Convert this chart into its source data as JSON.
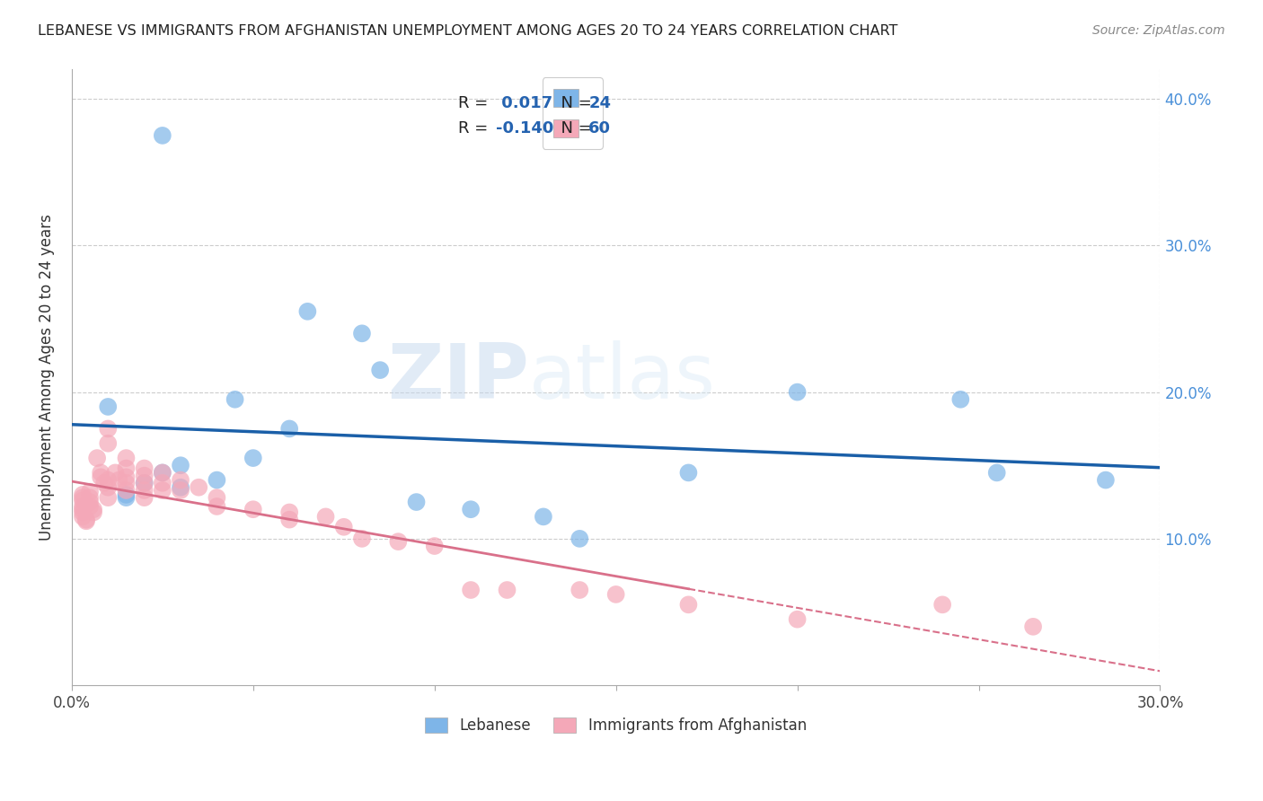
{
  "title": "LEBANESE VS IMMIGRANTS FROM AFGHANISTAN UNEMPLOYMENT AMONG AGES 20 TO 24 YEARS CORRELATION CHART",
  "source": "Source: ZipAtlas.com",
  "ylabel": "Unemployment Among Ages 20 to 24 years",
  "xlim": [
    0.0,
    0.3
  ],
  "ylim": [
    0.0,
    0.42
  ],
  "legend_R1": "0.017",
  "legend_N1": "24",
  "legend_R2": "-0.140",
  "legend_N2": "60",
  "color_lebanese": "#7eb5e8",
  "color_afghan": "#f4a8b8",
  "trend_color_lebanese": "#1a5fa8",
  "trend_color_afghan": "#d9708a",
  "watermark_zip": "ZIP",
  "watermark_atlas": "atlas",
  "lebanese_points": [
    [
      0.025,
      0.375
    ],
    [
      0.065,
      0.255
    ],
    [
      0.08,
      0.24
    ],
    [
      0.085,
      0.215
    ],
    [
      0.045,
      0.195
    ],
    [
      0.01,
      0.19
    ],
    [
      0.06,
      0.175
    ],
    [
      0.05,
      0.155
    ],
    [
      0.03,
      0.15
    ],
    [
      0.025,
      0.145
    ],
    [
      0.04,
      0.14
    ],
    [
      0.02,
      0.138
    ],
    [
      0.03,
      0.135
    ],
    [
      0.015,
      0.13
    ],
    [
      0.015,
      0.128
    ],
    [
      0.095,
      0.125
    ],
    [
      0.11,
      0.12
    ],
    [
      0.13,
      0.115
    ],
    [
      0.14,
      0.1
    ],
    [
      0.17,
      0.145
    ],
    [
      0.2,
      0.2
    ],
    [
      0.245,
      0.195
    ],
    [
      0.255,
      0.145
    ],
    [
      0.285,
      0.14
    ]
  ],
  "afghan_points": [
    [
      0.003,
      0.13
    ],
    [
      0.003,
      0.128
    ],
    [
      0.003,
      0.126
    ],
    [
      0.003,
      0.122
    ],
    [
      0.003,
      0.12
    ],
    [
      0.003,
      0.118
    ],
    [
      0.003,
      0.115
    ],
    [
      0.004,
      0.113
    ],
    [
      0.004,
      0.112
    ],
    [
      0.005,
      0.132
    ],
    [
      0.005,
      0.128
    ],
    [
      0.005,
      0.125
    ],
    [
      0.005,
      0.122
    ],
    [
      0.006,
      0.12
    ],
    [
      0.006,
      0.118
    ],
    [
      0.007,
      0.155
    ],
    [
      0.008,
      0.145
    ],
    [
      0.008,
      0.142
    ],
    [
      0.009,
      0.138
    ],
    [
      0.01,
      0.175
    ],
    [
      0.01,
      0.165
    ],
    [
      0.01,
      0.14
    ],
    [
      0.01,
      0.135
    ],
    [
      0.01,
      0.128
    ],
    [
      0.012,
      0.145
    ],
    [
      0.013,
      0.14
    ],
    [
      0.015,
      0.155
    ],
    [
      0.015,
      0.148
    ],
    [
      0.015,
      0.142
    ],
    [
      0.015,
      0.138
    ],
    [
      0.015,
      0.133
    ],
    [
      0.02,
      0.148
    ],
    [
      0.02,
      0.143
    ],
    [
      0.02,
      0.138
    ],
    [
      0.02,
      0.133
    ],
    [
      0.02,
      0.128
    ],
    [
      0.025,
      0.145
    ],
    [
      0.025,
      0.138
    ],
    [
      0.025,
      0.133
    ],
    [
      0.03,
      0.14
    ],
    [
      0.03,
      0.133
    ],
    [
      0.035,
      0.135
    ],
    [
      0.04,
      0.128
    ],
    [
      0.04,
      0.122
    ],
    [
      0.05,
      0.12
    ],
    [
      0.06,
      0.118
    ],
    [
      0.06,
      0.113
    ],
    [
      0.07,
      0.115
    ],
    [
      0.075,
      0.108
    ],
    [
      0.08,
      0.1
    ],
    [
      0.09,
      0.098
    ],
    [
      0.1,
      0.095
    ],
    [
      0.11,
      0.065
    ],
    [
      0.12,
      0.065
    ],
    [
      0.14,
      0.065
    ],
    [
      0.15,
      0.062
    ],
    [
      0.17,
      0.055
    ],
    [
      0.2,
      0.045
    ],
    [
      0.24,
      0.055
    ],
    [
      0.265,
      0.04
    ]
  ]
}
